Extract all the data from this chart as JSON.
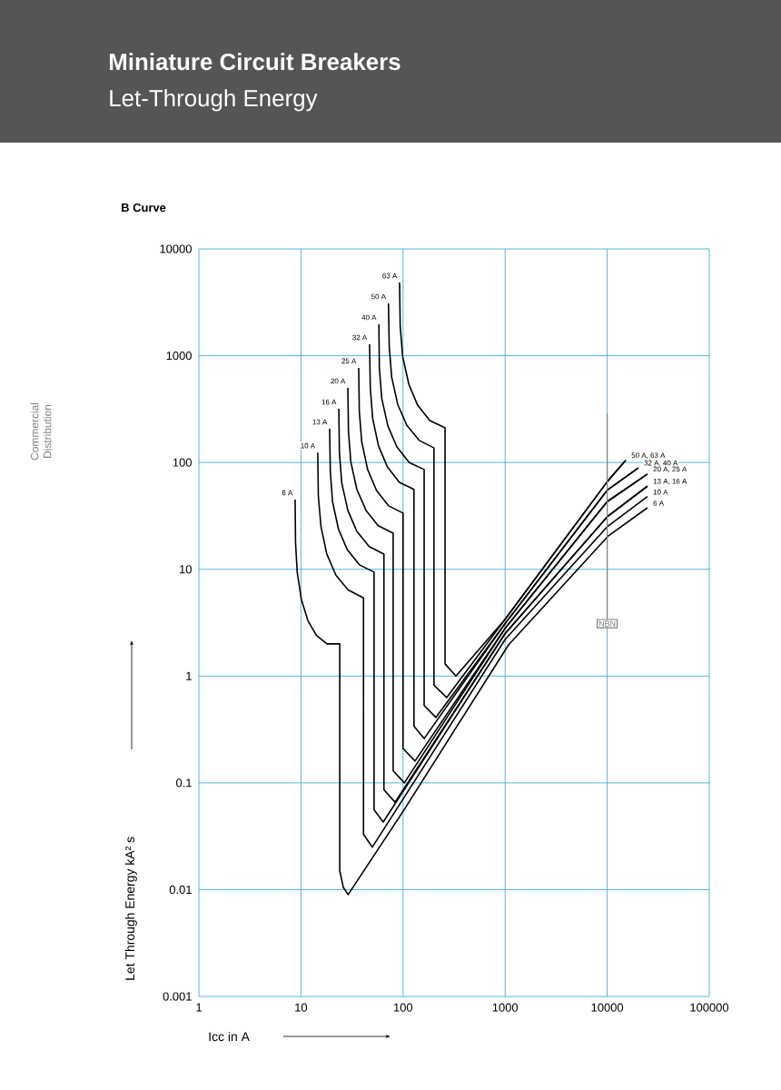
{
  "chart_data": {
    "type": "line",
    "title": "Miniature Circuit Breakers",
    "subtitle": "Let-Through Energy",
    "xlabel": "Icc in A",
    "ylabel": "Let Through Energy   kA² s",
    "annotations": [
      "B Curve",
      "Commercial Distribution",
      {
        "text": "50 A, 63 A",
        "x": 15200,
        "y": 105
      },
      {
        "text": "32 A, 40 A",
        "x": 20200,
        "y": 89
      },
      {
        "text": "20 A, 25 A",
        "x": 24800,
        "y": 78
      },
      {
        "text": "13 A, 16 A",
        "x": 24800,
        "y": 60
      },
      {
        "text": "10 A",
        "x": 24800,
        "y": 48
      },
      {
        "text": "6 A",
        "x": 24800,
        "y": 37.7
      }
    ],
    "log": "xy",
    "grid": true,
    "xlim": [
      1,
      100000
    ],
    "ylim": [
      0.001,
      10000
    ],
    "xticks": [
      1,
      10,
      100,
      1000,
      10000,
      100000
    ],
    "yticks": [
      0.001,
      0.01,
      0.1,
      1,
      10,
      100,
      1000,
      10000
    ],
    "ref_lines": [
      {
        "axis": "x",
        "value": 10000,
        "label": "NBN",
        "color": "#808080"
      }
    ],
    "series": [
      {
        "name": "6 A",
        "color": "#000000",
        "x": [
          8.77,
          8.85,
          9.2,
          10.1,
          11.7,
          14.2,
          18,
          24,
          24,
          26,
          29,
          100,
          1080,
          2300,
          10300,
          24800
        ],
        "values": [
          45,
          17.8,
          9.3,
          5.2,
          3.3,
          2.4,
          2.0,
          2.0,
          0.015,
          0.0105,
          0.009,
          0.054,
          1.96,
          4.3,
          20.6,
          37.7
        ]
      },
      {
        "name": "10 A",
        "color": "#000000",
        "x": [
          14.6,
          14.8,
          15.7,
          17.9,
          22.0,
          29.0,
          41,
          41,
          50,
          1000,
          10000,
          24800
        ],
        "values": [
          124,
          48.6,
          25.2,
          13.9,
          8.8,
          6.4,
          5.4,
          0.033,
          0.025,
          2.2,
          25,
          48
        ]
      },
      {
        "name": "13 A",
        "color": "#000000",
        "x": [
          19.1,
          19.4,
          20.4,
          23.3,
          28.5,
          37.4,
          52,
          52,
          64,
          1000,
          10000,
          24800
        ],
        "values": [
          207,
          81.8,
          42.8,
          23.8,
          15.2,
          11.0,
          9.4,
          0.056,
          0.043,
          2.5,
          31,
          60
        ]
      },
      {
        "name": "16 A",
        "color": "#000000",
        "x": [
          23.5,
          23.8,
          25.1,
          28.8,
          35.3,
          46.6,
          65,
          65,
          83.5,
          1000,
          10000,
          24800
        ],
        "values": [
          318,
          124,
          64.4,
          35.6,
          22.6,
          16.3,
          13.9,
          0.086,
          0.066,
          2.5,
          31,
          60
        ]
      },
      {
        "name": "20 A",
        "color": "#000000",
        "x": [
          28.8,
          29.2,
          30.8,
          35.3,
          43.4,
          57.1,
          80,
          80,
          103,
          1000,
          10000,
          24800
        ],
        "values": [
          500,
          196,
          101,
          56,
          35.6,
          25.6,
          21.8,
          0.13,
          0.1,
          2.8,
          43,
          78
        ]
      },
      {
        "name": "25 A",
        "color": "#000000",
        "x": [
          36.8,
          37.3,
          39.4,
          45.0,
          55.0,
          72.1,
          100,
          100,
          131,
          1000,
          10000,
          24800
        ],
        "values": [
          770,
          301,
          156,
          85.9,
          54.6,
          39.3,
          33.6,
          0.21,
          0.16,
          2.8,
          43,
          78
        ]
      },
      {
        "name": "32 A",
        "color": "#000000",
        "x": [
          47,
          47.8,
          50.4,
          57.5,
          70.3,
          92.0,
          128,
          128,
          161,
          1000,
          10000,
          20200
        ],
        "values": [
          1280,
          500,
          259,
          143,
          90.8,
          65.3,
          56,
          0.34,
          0.26,
          3.1,
          55,
          89
        ]
      },
      {
        "name": "40 A",
        "color": "#000000",
        "x": [
          58,
          58.6,
          61.9,
          71.0,
          87.1,
          115,
          161,
          161,
          210,
          1000,
          10000,
          20200
        ],
        "values": [
          1970,
          769,
          398,
          220,
          140,
          100,
          86,
          0.53,
          0.41,
          3.1,
          55,
          89
        ]
      },
      {
        "name": "50 A",
        "color": "#000000",
        "x": [
          72,
          73.3,
          77.4,
          88.7,
          109,
          144,
          201,
          201,
          268,
          1000,
          10000,
          15200
        ],
        "values": [
          3090,
          1213,
          631,
          350,
          223,
          161,
          137,
          0.82,
          0.63,
          3.4,
          66,
          105
        ]
      },
      {
        "name": "63 A",
        "color": "#000000",
        "x": [
          92.5,
          93.8,
          99.1,
          114,
          139,
          183,
          258,
          258,
          330,
          1000,
          10000,
          15200
        ],
        "values": [
          4840,
          1892,
          984,
          541,
          344,
          247,
          211,
          1.3,
          1.0,
          3.4,
          66,
          105
        ]
      }
    ]
  }
}
